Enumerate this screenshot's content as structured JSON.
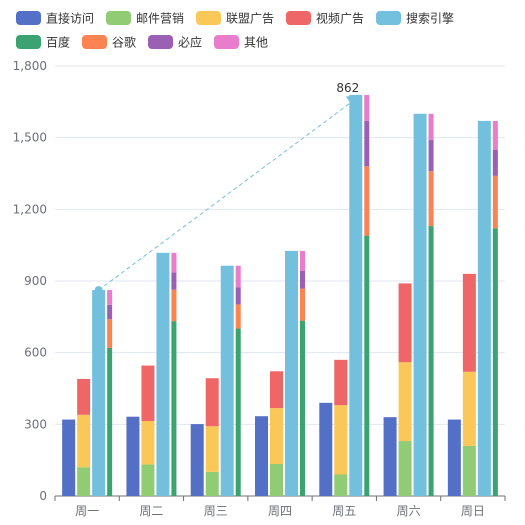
{
  "chart_data": {
    "type": "bar",
    "categories": [
      "周一",
      "周二",
      "周三",
      "周四",
      "周五",
      "周六",
      "周日"
    ],
    "ylim": [
      0,
      1800
    ],
    "yticks": [
      "0",
      "300",
      "600",
      "900",
      "1,200",
      "1,500",
      "1,800"
    ],
    "grid": true,
    "legend_position": "top",
    "series": [
      {
        "name": "直接访问",
        "color": "#5470c6",
        "stack": null,
        "values": [
          320,
          332,
          301,
          334,
          390,
          330,
          320
        ]
      },
      {
        "name": "邮件营销",
        "color": "#91cc75",
        "stack": "广告",
        "values": [
          120,
          132,
          101,
          134,
          90,
          230,
          210
        ]
      },
      {
        "name": "联盟广告",
        "color": "#fac858",
        "stack": "广告",
        "values": [
          220,
          182,
          191,
          234,
          290,
          330,
          310
        ]
      },
      {
        "name": "视频广告",
        "color": "#ee6666",
        "stack": "广告",
        "values": [
          150,
          232,
          201,
          154,
          190,
          330,
          410
        ]
      },
      {
        "name": "搜索引擎",
        "color": "#73c0de",
        "stack": null,
        "values": [
          862,
          1018,
          964,
          1026,
          1679,
          1600,
          1570
        ]
      },
      {
        "name": "百度",
        "color": "#3ba272",
        "stack": "搜索",
        "values": [
          620,
          732,
          701,
          734,
          1090,
          1130,
          1120
        ]
      },
      {
        "name": "谷歌",
        "color": "#fc8452",
        "stack": "搜索",
        "values": [
          120,
          132,
          101,
          134,
          290,
          230,
          220
        ]
      },
      {
        "name": "必应",
        "color": "#9a60b4",
        "stack": "搜索",
        "values": [
          60,
          72,
          71,
          74,
          190,
          130,
          110
        ]
      },
      {
        "name": "其他",
        "color": "#ea7ccc",
        "stack": "搜索",
        "values": [
          62,
          82,
          91,
          84,
          109,
          110,
          120
        ]
      }
    ],
    "annotation": {
      "type": "markLine",
      "series": "搜索引擎",
      "from_category": "周一",
      "to_category": "周五",
      "label": "862"
    }
  }
}
